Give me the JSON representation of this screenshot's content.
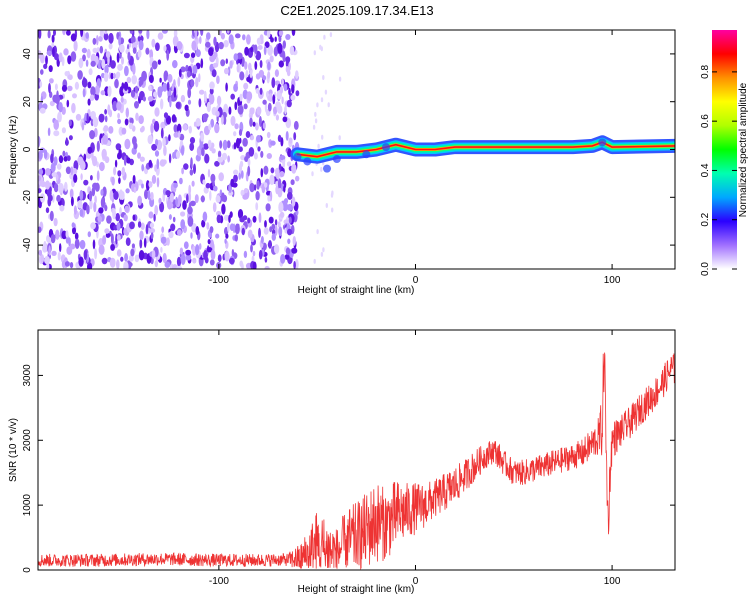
{
  "title": "C2E1.2025.109.17.34.E13",
  "chart_data": [
    {
      "type": "heatmap",
      "xlabel": "Height of straight line (km)",
      "ylabel": "Frequency (Hz)",
      "xlim": [
        -192,
        132
      ],
      "ylim": [
        -50,
        50
      ],
      "xticks": [
        -100,
        0,
        100
      ],
      "yticks": [
        -40,
        -20,
        0,
        20,
        40
      ],
      "colorbar": {
        "label": "Normalized spectral amplitude",
        "range": [
          0,
          0.97
        ],
        "ticks": [
          "0.0",
          "0.2",
          "0.4",
          "0.6",
          "0.8"
        ],
        "colors": [
          "#ffffff",
          "#a070ff",
          "#2a00ff",
          "#00a8ff",
          "#00ffb0",
          "#00ff00",
          "#b0ff00",
          "#ffff00",
          "#ff9000",
          "#ff0000",
          "#ff00a0"
        ]
      },
      "noise_region_x": [
        -192,
        -60
      ],
      "signal_line": {
        "x": [
          -60,
          -50,
          -40,
          -30,
          -20,
          -10,
          0,
          10,
          20,
          40,
          60,
          80,
          90,
          95,
          100,
          132
        ],
        "freq": [
          -2,
          -3,
          -1,
          -1,
          0,
          2,
          0,
          0,
          1,
          1,
          1,
          1,
          1.5,
          3,
          1,
          1.5
        ]
      }
    },
    {
      "type": "line",
      "xlabel": "Height of straight line (km)",
      "ylabel": "SNR (10 * v/v)",
      "xlim": [
        -192,
        132
      ],
      "ylim": [
        0,
        3700
      ],
      "xticks": [
        -100,
        0,
        100
      ],
      "yticks": [
        0,
        1000,
        2000,
        3000
      ],
      "color": "#ee3333",
      "x": [
        -192,
        -160,
        -130,
        -100,
        -80,
        -65,
        -58,
        -50,
        -45,
        -40,
        -35,
        -30,
        -25,
        -20,
        -15,
        -10,
        -5,
        0,
        5,
        10,
        15,
        20,
        25,
        30,
        35,
        40,
        45,
        50,
        55,
        60,
        65,
        70,
        75,
        80,
        85,
        90,
        93,
        95,
        96,
        97,
        98,
        99,
        100,
        105,
        110,
        115,
        120,
        125,
        130
      ],
      "y": [
        150,
        150,
        170,
        150,
        150,
        160,
        180,
        350,
        300,
        250,
        450,
        500,
        600,
        750,
        700,
        850,
        900,
        950,
        1000,
        1100,
        1200,
        1300,
        1450,
        1600,
        1750,
        1850,
        1650,
        1500,
        1500,
        1550,
        1600,
        1650,
        1700,
        1750,
        1800,
        1950,
        2050,
        2200,
        3500,
        1800,
        700,
        1500,
        2000,
        2150,
        2300,
        2500,
        2650,
        2850,
        3100
      ],
      "noise_amp": [
        100,
        100,
        100,
        100,
        100,
        100,
        250,
        600,
        500,
        400,
        500,
        550,
        600,
        650,
        550,
        550,
        450,
        400,
        350,
        300,
        300,
        300,
        250,
        250,
        200,
        200,
        200,
        200,
        200,
        200,
        200,
        200,
        200,
        200,
        220,
        250,
        300,
        500,
        600,
        500,
        400,
        350,
        300,
        250,
        250,
        250,
        250,
        250,
        250
      ]
    }
  ]
}
